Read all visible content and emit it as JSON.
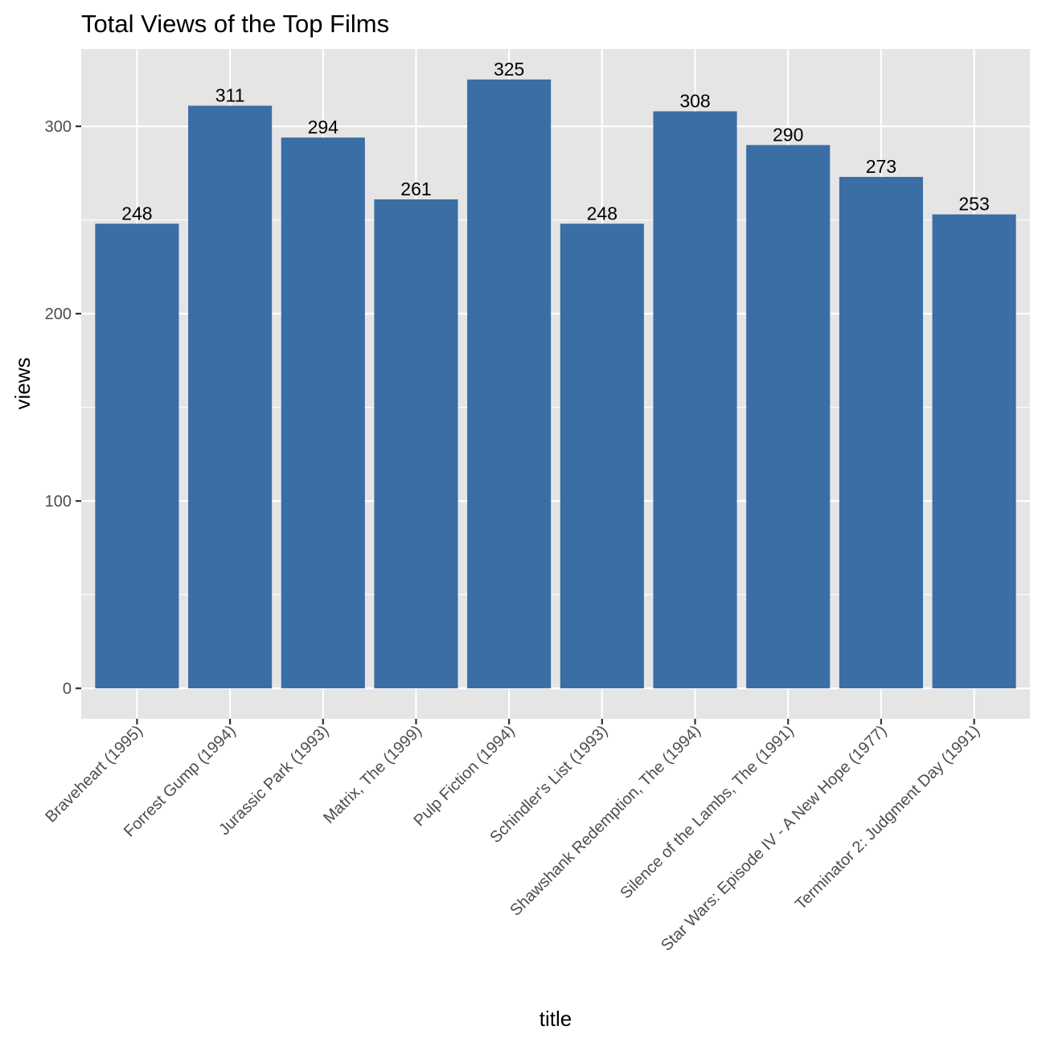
{
  "chart_data": {
    "type": "bar",
    "title": "Total Views of the Top Films",
    "xlabel": "title",
    "ylabel": "views",
    "categories": [
      "Braveheart (1995)",
      "Forrest Gump (1994)",
      "Jurassic Park (1993)",
      "Matrix, The (1999)",
      "Pulp Fiction (1994)",
      "Schindler's List (1993)",
      "Shawshank Redemption, The (1994)",
      "Silence of the Lambs, The (1991)",
      "Star Wars: Episode IV - A New Hope (1977)",
      "Terminator 2: Judgment Day (1991)"
    ],
    "values": [
      248,
      311,
      294,
      261,
      325,
      248,
      308,
      290,
      273,
      253
    ],
    "value_labels": [
      "248",
      "311",
      "294",
      "261",
      "325",
      "248",
      "308",
      "290",
      "273",
      "253"
    ],
    "ylim": [
      -16.25,
      341.25
    ],
    "yticks": [
      0,
      100,
      200,
      300
    ],
    "ytick_labels": [
      "0",
      "100",
      "200",
      "300"
    ],
    "grid": true,
    "legend": "none",
    "colors": {
      "bar": "#3a6ea5",
      "panel": "#e5e5e5",
      "grid": "#ffffff",
      "text": "#000000",
      "tick_text": "#4d4d4d",
      "tick_mark": "#333333"
    }
  }
}
